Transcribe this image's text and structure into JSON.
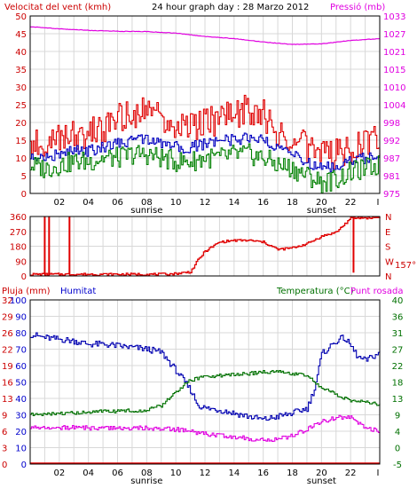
{
  "header": {
    "left_label": "Velocitat del vent (kmh)",
    "title": "24 hour graph day : 28 Marzo 2012",
    "right_label": "Pressió (mb)"
  },
  "colors": {
    "background": "#ffffff",
    "grid": "#d8d8d8",
    "frame": "#000000",
    "wind_gust": "#e00000",
    "wind_avg": "#0000c0",
    "wind_low": "#008000",
    "pressure": "#e000e0",
    "direction": "#e00000",
    "humidity": "#0000b0",
    "temperature": "#007000",
    "dewpoint": "#e000e0",
    "rain": "#e00000",
    "left_axis_red": "#cc0000",
    "left_axis_blue": "#0000cc",
    "right_axis_green": "#007000"
  },
  "time_axis": {
    "hour_labels": [
      "02",
      "04",
      "06",
      "08",
      "10",
      "12",
      "14",
      "16",
      "18",
      "20",
      "22"
    ],
    "sunrise_label": "sunrise",
    "sunset_label": "sunset",
    "end_tick_label": "I"
  },
  "chart_data": [
    {
      "type": "line",
      "panel": "wind_pressure",
      "x_unit": "hours",
      "xlim": [
        0,
        24
      ],
      "ylabel": "Velocitat del vent (kmh)",
      "ylim": [
        0,
        50
      ],
      "y_ticks": [
        0,
        5,
        10,
        15,
        20,
        25,
        30,
        35,
        40,
        45,
        50
      ],
      "y2label": "Pressió (mb)",
      "y2lim": [
        975,
        1033
      ],
      "y2_ticks": [
        975,
        981,
        987,
        992,
        998,
        1004,
        1010,
        1015,
        1021,
        1027,
        1033
      ],
      "grid": true,
      "series": [
        {
          "color": "#e00000",
          "axis": "left",
          "x": [
            0,
            1,
            2,
            3,
            4,
            5,
            6,
            7,
            8,
            9,
            10,
            11,
            12,
            13,
            14,
            15,
            16,
            17,
            18,
            19,
            20,
            21,
            22,
            23,
            24
          ],
          "values": [
            15,
            13,
            16,
            16,
            17,
            18,
            21,
            22,
            23,
            22,
            19,
            18,
            20,
            21,
            22,
            24,
            22,
            17,
            16,
            13,
            10,
            11,
            12,
            14,
            15
          ]
        },
        {
          "color": "#0000c0",
          "axis": "left",
          "x": [
            0,
            1,
            2,
            3,
            4,
            5,
            6,
            7,
            8,
            9,
            10,
            11,
            12,
            13,
            14,
            15,
            16,
            17,
            18,
            19,
            20,
            21,
            22,
            23,
            24
          ],
          "values": [
            11,
            10,
            11,
            12,
            12,
            13,
            14,
            15,
            15,
            14,
            13,
            13,
            14,
            15,
            15,
            16,
            15,
            12,
            11,
            9,
            7,
            8,
            9,
            10,
            11
          ]
        },
        {
          "color": "#008000",
          "axis": "left",
          "x": [
            0,
            1,
            2,
            3,
            4,
            5,
            6,
            7,
            8,
            9,
            10,
            11,
            12,
            13,
            14,
            15,
            16,
            17,
            18,
            19,
            20,
            21,
            22,
            23,
            24
          ],
          "values": [
            8,
            7,
            8,
            9,
            9,
            10,
            10,
            11,
            11,
            10,
            9,
            9,
            10,
            10,
            11,
            11,
            10,
            8,
            7,
            5,
            3,
            4,
            6,
            7,
            8
          ]
        },
        {
          "color": "#e000e0",
          "axis": "right",
          "x": [
            0,
            2,
            4,
            6,
            8,
            10,
            12,
            14,
            16,
            18,
            20,
            22,
            24
          ],
          "values": [
            1029.5,
            1028.8,
            1028.3,
            1028.0,
            1027.9,
            1027.4,
            1026.3,
            1025.6,
            1024.5,
            1023.7,
            1023.9,
            1025.0,
            1025.6
          ]
        }
      ]
    },
    {
      "type": "line",
      "panel": "wind_direction",
      "x_unit": "hours",
      "xlim": [
        0,
        24
      ],
      "ylim": [
        0,
        360
      ],
      "y_ticks": [
        0,
        90,
        180,
        270,
        360
      ],
      "y2_ticks": [
        "N",
        "E",
        "S",
        "W",
        "N"
      ],
      "current_value_label": "157°",
      "grid": true,
      "series": [
        {
          "color": "#e00000",
          "x": [
            0,
            0.5,
            1,
            1.5,
            2,
            2.5,
            3,
            4,
            5,
            6,
            7,
            8,
            9,
            10,
            11,
            11.5,
            12,
            13,
            14,
            15,
            16,
            17,
            18,
            19,
            20,
            21,
            22,
            23,
            24
          ],
          "values": [
            10,
            10,
            10,
            10,
            10,
            10,
            10,
            10,
            10,
            10,
            10,
            10,
            10,
            14,
            25,
            95,
            150,
            205,
            215,
            215,
            205,
            160,
            170,
            195,
            240,
            265,
            350,
            352,
            355
          ]
        }
      ],
      "spikes": [
        {
          "x": 1.0,
          "values": [
            10,
            358
          ]
        },
        {
          "x": 1.3,
          "values": [
            10,
            358
          ]
        },
        {
          "x": 2.7,
          "values": [
            10,
            358
          ]
        },
        {
          "x": 22.2,
          "values": [
            20,
            350
          ]
        }
      ]
    },
    {
      "type": "line",
      "panel": "humidity_temperature",
      "x_unit": "hours",
      "xlim": [
        0,
        24
      ],
      "left_title": "Pluja (mm)",
      "left_title2": "Humitat",
      "right_title": "Temperatura (°C)",
      "right_title2": "Punt rosada",
      "ylim": [
        0,
        100
      ],
      "y_ticks": [
        0,
        10,
        20,
        30,
        40,
        50,
        60,
        70,
        80,
        90,
        100
      ],
      "rain_ticks": [
        0,
        3,
        6,
        9,
        13,
        16,
        19,
        22,
        26,
        29,
        32
      ],
      "y2lim": [
        -5,
        40
      ],
      "y2_ticks": [
        -5,
        0,
        4,
        9,
        13,
        18,
        22,
        27,
        31,
        36,
        40
      ],
      "y2_tick_labels": [
        "-5",
        "0",
        "4",
        "9",
        "13",
        "18",
        "22",
        "27",
        "31",
        "36",
        "40"
      ],
      "grid": true,
      "series": [
        {
          "color": "#0000b0",
          "axis": "left",
          "x": [
            0,
            1,
            2,
            3,
            4,
            5,
            6,
            7,
            8,
            9,
            10,
            11,
            11.5,
            12,
            13,
            14,
            15,
            16,
            17,
            18,
            19,
            19.5,
            20,
            21,
            21.5,
            22,
            22.5,
            23,
            24
          ],
          "values": [
            79,
            77,
            76,
            75,
            73,
            73,
            72,
            71,
            70,
            68,
            57,
            45,
            36,
            34,
            33,
            31,
            29,
            27,
            29,
            31,
            34,
            46,
            67,
            75,
            77,
            72,
            65,
            63,
            68
          ]
        },
        {
          "color": "#007000",
          "axis": "right",
          "x": [
            0,
            1,
            2,
            3,
            4,
            5,
            6,
            7,
            8,
            9,
            10,
            11,
            12,
            13,
            14,
            15,
            16,
            17,
            18,
            19,
            20,
            21,
            22,
            23,
            24
          ],
          "values": [
            8.5,
            8.5,
            8.8,
            9.0,
            9.2,
            9.4,
            9.5,
            9.7,
            9.8,
            11.0,
            15.0,
            18.0,
            19.0,
            19.2,
            19.5,
            19.8,
            20.2,
            20.5,
            19.8,
            19.3,
            16.0,
            14.0,
            12.5,
            12.0,
            11.2
          ]
        },
        {
          "color": "#e000e0",
          "axis": "right",
          "x": [
            0,
            1,
            2,
            3,
            4,
            5,
            6,
            7,
            8,
            9,
            10,
            11,
            12,
            13,
            14,
            15,
            16,
            17,
            18,
            19,
            20,
            21,
            22,
            23,
            24
          ],
          "values": [
            5.2,
            5.1,
            5.0,
            5.0,
            4.9,
            4.8,
            4.7,
            4.8,
            4.9,
            4.7,
            4.5,
            4.0,
            3.2,
            3.0,
            2.5,
            2.0,
            1.5,
            1.8,
            2.8,
            4.5,
            6.5,
            7.8,
            8.0,
            5.0,
            4.0
          ]
        },
        {
          "color": "#e00000",
          "axis": "rain",
          "x": [
            0,
            24
          ],
          "values": [
            0,
            0
          ]
        }
      ]
    }
  ]
}
